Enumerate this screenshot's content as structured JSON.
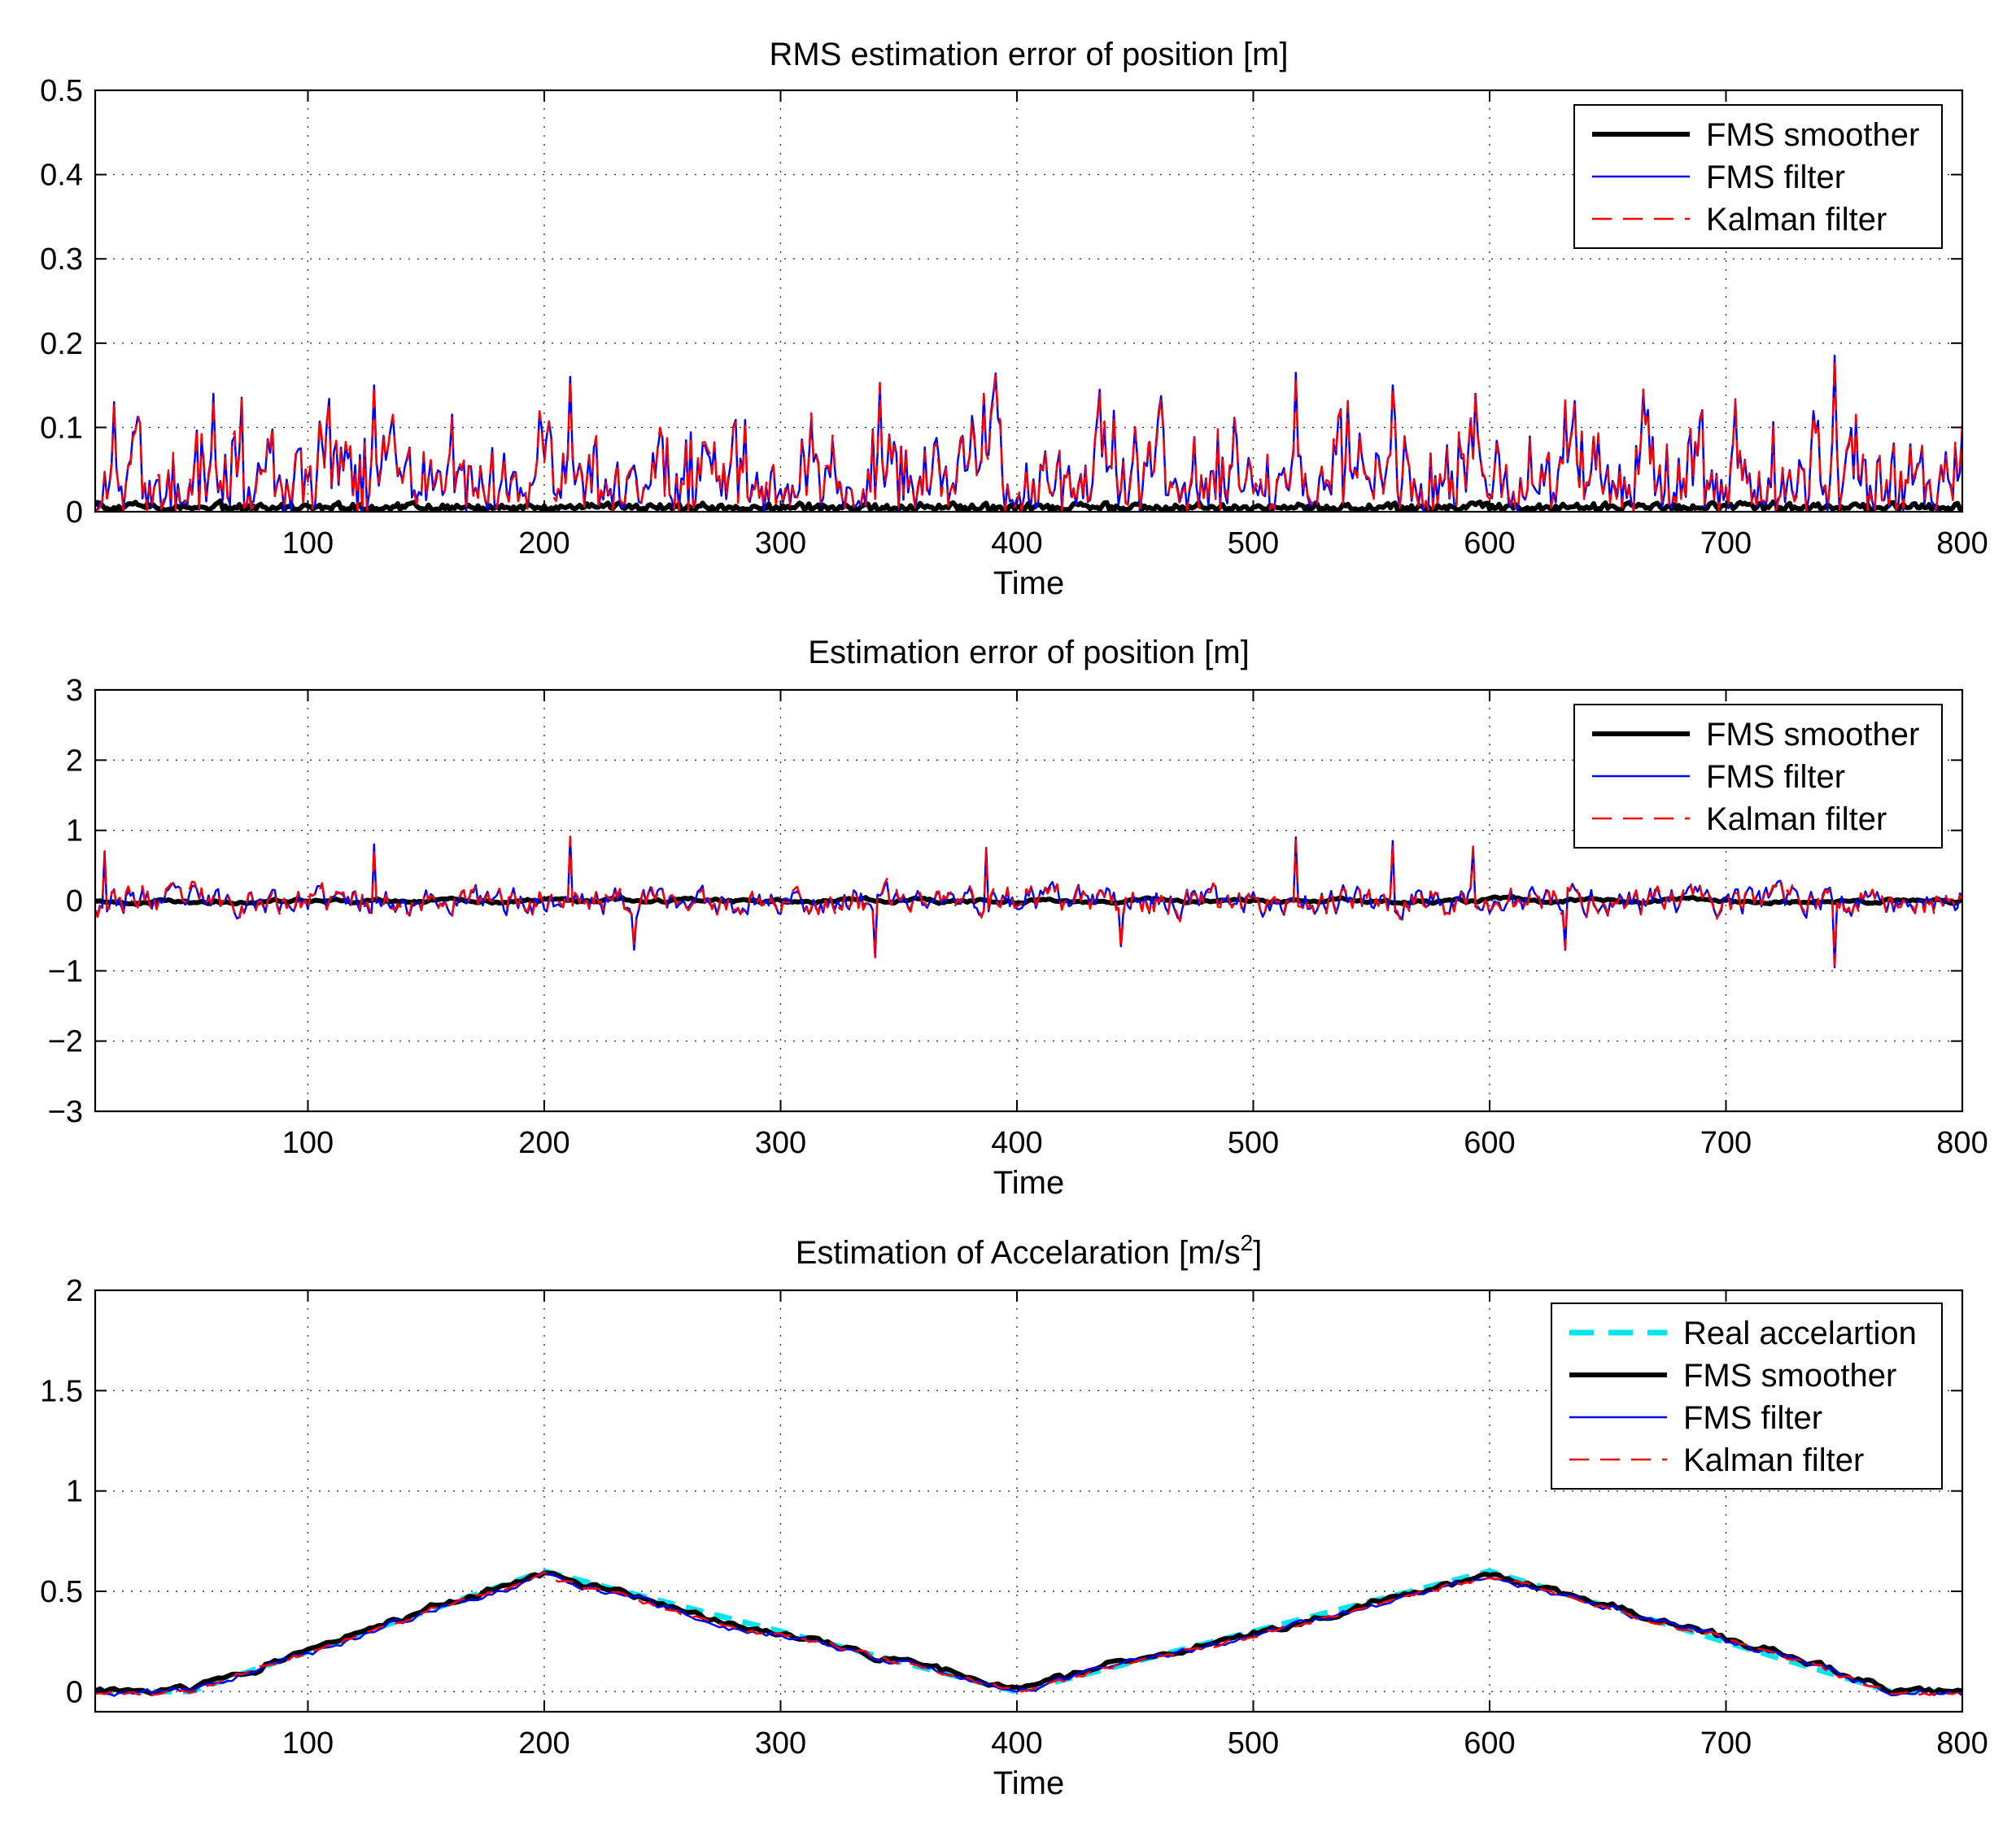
{
  "chart_data": [
    {
      "type": "line",
      "title": "RMS estimation error of position [m]",
      "title_sup": "",
      "title_suffix": "",
      "xlabel": "Time",
      "ylabel": "",
      "xlim": [
        10,
        800
      ],
      "ylim": [
        0,
        0.5
      ],
      "xticks": [
        100,
        200,
        300,
        400,
        500,
        600,
        700,
        800
      ],
      "xtick_labels": [
        "100",
        "200",
        "300",
        "400",
        "500",
        "600",
        "700",
        "800"
      ],
      "yticks": [
        0,
        0.1,
        0.2,
        0.3,
        0.4,
        0.5
      ],
      "ytick_labels": [
        "0",
        "0.1",
        "0.2",
        "0.3",
        "0.4",
        "0.5"
      ],
      "grid": true,
      "legend_position": "top-right",
      "signal": {
        "kind": "rms",
        "seed": 11,
        "step": 1,
        "peaks": [
          [
            18,
            0.13
          ],
          [
            60,
            0.14
          ],
          [
            128,
            0.15
          ],
          [
            211,
            0.16
          ],
          [
            342,
            0.15
          ],
          [
            386,
            0.14
          ],
          [
            441,
            0.12
          ],
          [
            518,
            0.165
          ],
          [
            540,
            0.13
          ],
          [
            559,
            0.15
          ],
          [
            594,
            0.14
          ],
          [
            632,
            0.13
          ],
          [
            704,
            0.13
          ],
          [
            746,
            0.185
          ],
          [
            778,
            0.08
          ]
        ]
      },
      "series": [
        {
          "name": "Real accelartion",
          "show": false,
          "color": "#00e5ee",
          "style": "dashed",
          "width": 7
        },
        {
          "name": "FMS smoother",
          "show": true,
          "color": "#000000",
          "style": "solid",
          "width": 6
        },
        {
          "name": "FMS filter",
          "show": true,
          "color": "#0000ff",
          "style": "solid",
          "width": 2.5
        },
        {
          "name": "Kalman filter",
          "show": true,
          "color": "#ff0000",
          "style": "dashed",
          "width": 2.5
        }
      ]
    },
    {
      "type": "line",
      "title": "Estimation error of position [m]",
      "title_sup": "",
      "title_suffix": "",
      "xlabel": "Time",
      "ylabel": "",
      "xlim": [
        10,
        800
      ],
      "ylim": [
        -3,
        3
      ],
      "xticks": [
        100,
        200,
        300,
        400,
        500,
        600,
        700,
        800
      ],
      "xtick_labels": [
        "100",
        "200",
        "300",
        "400",
        "500",
        "600",
        "700",
        "800"
      ],
      "yticks": [
        -3,
        -2,
        -1,
        0,
        1,
        2,
        3
      ],
      "ytick_labels": [
        "−3",
        "−2",
        "−1",
        "0",
        "1",
        "2",
        "3"
      ],
      "grid": true,
      "legend_position": "top-right",
      "signal": {
        "kind": "error",
        "seed": 23,
        "step": 1,
        "peaks": [
          [
            14,
            0.7
          ],
          [
            128,
            0.8
          ],
          [
            211,
            0.9
          ],
          [
            238,
            -0.7
          ],
          [
            340,
            -0.8
          ],
          [
            387,
            0.75
          ],
          [
            444,
            -0.65
          ],
          [
            518,
            0.9
          ],
          [
            559,
            0.85
          ],
          [
            593,
            0.75
          ],
          [
            632,
            -0.7
          ],
          [
            746,
            -0.95
          ]
        ]
      },
      "series": [
        {
          "name": "Real accelartion",
          "show": false,
          "color": "#00e5ee",
          "style": "dashed",
          "width": 7
        },
        {
          "name": "FMS smoother",
          "show": true,
          "color": "#000000",
          "style": "solid",
          "width": 6
        },
        {
          "name": "FMS filter",
          "show": true,
          "color": "#0000ff",
          "style": "solid",
          "width": 2.5
        },
        {
          "name": "Kalman filter",
          "show": true,
          "color": "#ff0000",
          "style": "dashed",
          "width": 2.5
        }
      ]
    },
    {
      "type": "line",
      "title": "Estimation of Accelaration [m/s",
      "title_sup": "2",
      "title_suffix": "]",
      "xlabel": "Time",
      "ylabel": "",
      "xlim": [
        10,
        800
      ],
      "ylim": [
        -0.1,
        2
      ],
      "xticks": [
        100,
        200,
        300,
        400,
        500,
        600,
        700,
        800
      ],
      "xtick_labels": [
        "100",
        "200",
        "300",
        "400",
        "500",
        "600",
        "700",
        "800"
      ],
      "yticks": [
        0,
        0.5,
        1,
        1.5,
        2
      ],
      "ytick_labels": [
        "0",
        "0.5",
        "1",
        "1.5",
        "2"
      ],
      "grid": true,
      "legend_position": "top-right",
      "signal": {
        "kind": "accel",
        "seed": 37,
        "step": 2,
        "real_accel_x": [
          10,
          50,
          200,
          400,
          600,
          770,
          800
        ],
        "real_accel_y": [
          0.0,
          0.0,
          0.6,
          0.0,
          0.6,
          0.0,
          0.0
        ]
      },
      "series": [
        {
          "name": "Real accelartion",
          "show": true,
          "color": "#00e5ee",
          "style": "dashed",
          "width": 7
        },
        {
          "name": "FMS smoother",
          "show": true,
          "color": "#000000",
          "style": "solid",
          "width": 6
        },
        {
          "name": "FMS filter",
          "show": true,
          "color": "#0000ff",
          "style": "solid",
          "width": 2.5
        },
        {
          "name": "Kalman filter",
          "show": true,
          "color": "#ff0000",
          "style": "dashed",
          "width": 2.5
        }
      ]
    }
  ]
}
